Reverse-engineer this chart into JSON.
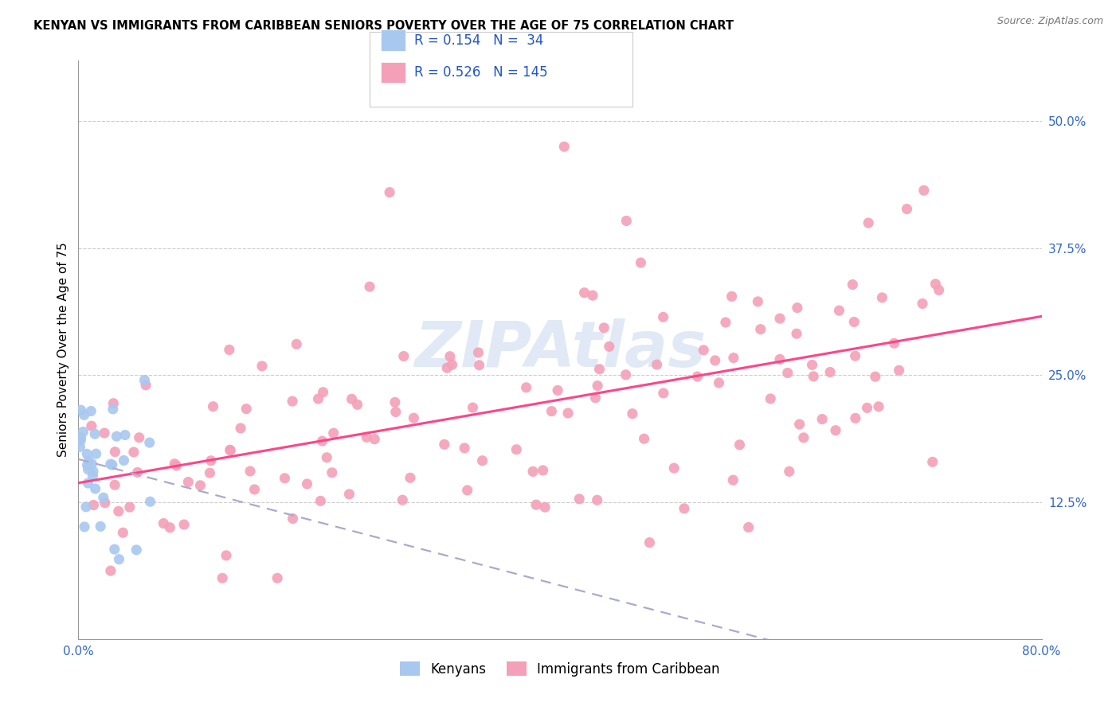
{
  "title": "KENYAN VS IMMIGRANTS FROM CARIBBEAN SENIORS POVERTY OVER THE AGE OF 75 CORRELATION CHART",
  "source": "Source: ZipAtlas.com",
  "ylabel": "Seniors Poverty Over the Age of 75",
  "xlim": [
    0.0,
    0.8
  ],
  "ylim": [
    -0.01,
    0.56
  ],
  "ytick_positions": [
    0.125,
    0.25,
    0.375,
    0.5
  ],
  "ytick_labels": [
    "12.5%",
    "25.0%",
    "37.5%",
    "50.0%"
  ],
  "watermark": "ZIPAtlas",
  "kenyan_R": 0.154,
  "kenyan_N": 34,
  "carib_R": 0.526,
  "carib_N": 145,
  "kenyan_color": "#a8c8f0",
  "carib_color": "#f4a0b8",
  "carib_line_color": "#ff4488",
  "background_color": "#ffffff",
  "grid_color": "#cccccc"
}
